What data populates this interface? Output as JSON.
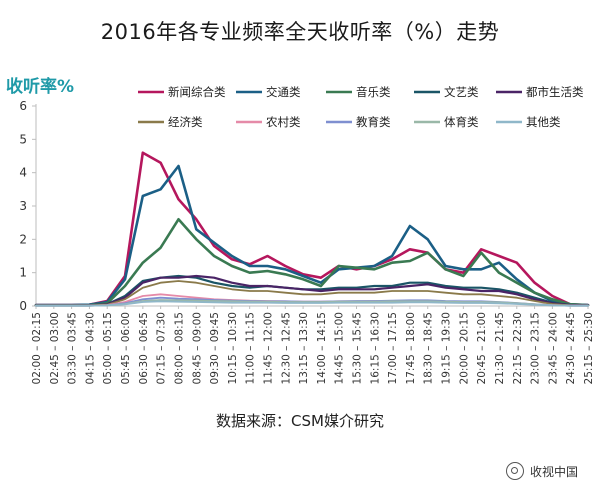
{
  "chart_data": {
    "type": "line",
    "title": "2016年各专业频率全天收听率（%）走势",
    "ylabel": "收听率%",
    "xlabel": "",
    "ylim": [
      0,
      6
    ],
    "yticks": [
      0,
      1,
      2,
      3,
      4,
      5,
      6
    ],
    "grid": false,
    "legend_position": "top",
    "x": [
      "02:00 – 02:15",
      "02:45 – 03:00",
      "03:30 – 03:45",
      "04:15 – 04:30",
      "05:00 – 05:15",
      "05:45 – 06:00",
      "06:30 – 06:45",
      "07:15 – 07:30",
      "08:00 – 08:15",
      "08:45 – 09:00",
      "09:30 – 09:45",
      "10:15 – 10:30",
      "11:00 – 11:15",
      "11:45 – 12:00",
      "12:30 – 12:45",
      "13:15 – 13:30",
      "14:00 – 14:15",
      "14:45 – 15:00",
      "15:30 – 15:45",
      "16:15 – 16:30",
      "17:00 – 17:15",
      "17:45 – 18:00",
      "18:30 – 18:45",
      "19:15 – 19:30",
      "20:00 – 20:15",
      "20:45 – 21:00",
      "21:30 – 21:45",
      "22:15 – 22:30",
      "23:00 – 23:15",
      "23:45 – 24:00",
      "24:30 – 24:45",
      "25:15 – 25:30"
    ],
    "series": [
      {
        "name": "新闻综合类",
        "color": "#b5175d",
        "values": [
          0.03,
          0.03,
          0.03,
          0.04,
          0.15,
          0.9,
          4.6,
          4.3,
          3.2,
          2.6,
          1.8,
          1.4,
          1.25,
          1.5,
          1.2,
          0.95,
          0.85,
          1.2,
          1.1,
          1.2,
          1.4,
          1.7,
          1.6,
          1.1,
          1.0,
          1.7,
          1.5,
          1.3,
          0.7,
          0.3,
          0.05,
          0.03
        ]
      },
      {
        "name": "交通类",
        "color": "#1b5f86",
        "values": [
          0.03,
          0.03,
          0.03,
          0.04,
          0.12,
          0.8,
          3.3,
          3.5,
          4.2,
          2.3,
          1.9,
          1.5,
          1.2,
          1.2,
          1.1,
          0.9,
          0.7,
          1.1,
          1.15,
          1.2,
          1.5,
          2.4,
          2.0,
          1.2,
          1.1,
          1.1,
          1.3,
          0.8,
          0.4,
          0.15,
          0.05,
          0.03
        ]
      },
      {
        "name": "音乐类",
        "color": "#3a7a52",
        "values": [
          0.02,
          0.02,
          0.02,
          0.02,
          0.08,
          0.6,
          1.3,
          1.75,
          2.6,
          2.0,
          1.5,
          1.2,
          1.0,
          1.05,
          0.95,
          0.8,
          0.6,
          1.2,
          1.15,
          1.1,
          1.3,
          1.35,
          1.6,
          1.1,
          0.9,
          1.6,
          1.0,
          0.7,
          0.4,
          0.2,
          0.05,
          0.02
        ]
      },
      {
        "name": "文艺类",
        "color": "#1a5566",
        "values": [
          0.02,
          0.02,
          0.02,
          0.02,
          0.05,
          0.3,
          0.75,
          0.85,
          0.9,
          0.85,
          0.7,
          0.6,
          0.55,
          0.6,
          0.55,
          0.5,
          0.5,
          0.55,
          0.55,
          0.6,
          0.6,
          0.7,
          0.7,
          0.6,
          0.55,
          0.55,
          0.5,
          0.4,
          0.25,
          0.1,
          0.03,
          0.02
        ]
      },
      {
        "name": "都市生活类",
        "color": "#4a2466",
        "values": [
          0.02,
          0.02,
          0.02,
          0.02,
          0.05,
          0.25,
          0.7,
          0.85,
          0.85,
          0.9,
          0.85,
          0.7,
          0.6,
          0.6,
          0.55,
          0.5,
          0.45,
          0.5,
          0.5,
          0.5,
          0.55,
          0.6,
          0.65,
          0.55,
          0.5,
          0.45,
          0.45,
          0.35,
          0.2,
          0.08,
          0.03,
          0.02
        ]
      },
      {
        "name": "经济类",
        "color": "#8a7a4a",
        "values": [
          0.02,
          0.02,
          0.02,
          0.02,
          0.04,
          0.2,
          0.55,
          0.7,
          0.75,
          0.7,
          0.6,
          0.5,
          0.45,
          0.45,
          0.4,
          0.35,
          0.35,
          0.4,
          0.4,
          0.4,
          0.45,
          0.45,
          0.45,
          0.4,
          0.35,
          0.35,
          0.3,
          0.25,
          0.15,
          0.06,
          0.02,
          0.02
        ]
      },
      {
        "name": "农村类",
        "color": "#e58aa8",
        "values": [
          0.01,
          0.01,
          0.01,
          0.01,
          0.03,
          0.12,
          0.3,
          0.35,
          0.3,
          0.25,
          0.2,
          0.18,
          0.16,
          0.15,
          0.14,
          0.13,
          0.13,
          0.14,
          0.14,
          0.15,
          0.15,
          0.15,
          0.15,
          0.13,
          0.12,
          0.12,
          0.1,
          0.08,
          0.05,
          0.03,
          0.01,
          0.01
        ]
      },
      {
        "name": "教育类",
        "color": "#7f8fd0",
        "values": [
          0.01,
          0.01,
          0.01,
          0.01,
          0.02,
          0.08,
          0.2,
          0.25,
          0.22,
          0.2,
          0.18,
          0.16,
          0.15,
          0.14,
          0.14,
          0.13,
          0.13,
          0.14,
          0.15,
          0.15,
          0.16,
          0.17,
          0.17,
          0.15,
          0.14,
          0.14,
          0.12,
          0.09,
          0.05,
          0.02,
          0.01,
          0.01
        ]
      },
      {
        "name": "体育类",
        "color": "#9ab8a8",
        "values": [
          0.01,
          0.01,
          0.01,
          0.01,
          0.02,
          0.06,
          0.15,
          0.18,
          0.17,
          0.16,
          0.15,
          0.14,
          0.13,
          0.13,
          0.12,
          0.12,
          0.12,
          0.13,
          0.13,
          0.13,
          0.14,
          0.14,
          0.14,
          0.13,
          0.12,
          0.12,
          0.11,
          0.08,
          0.05,
          0.02,
          0.01,
          0.01
        ]
      },
      {
        "name": "其他类",
        "color": "#8fb7c9",
        "values": [
          0.01,
          0.01,
          0.01,
          0.01,
          0.02,
          0.05,
          0.12,
          0.14,
          0.13,
          0.12,
          0.11,
          0.1,
          0.1,
          0.1,
          0.09,
          0.09,
          0.09,
          0.1,
          0.1,
          0.1,
          0.1,
          0.11,
          0.11,
          0.1,
          0.09,
          0.09,
          0.08,
          0.06,
          0.04,
          0.02,
          0.01,
          0.01
        ]
      }
    ]
  },
  "source_text": "数据来源：CSM媒介研究",
  "watermark_text": "收视中国"
}
